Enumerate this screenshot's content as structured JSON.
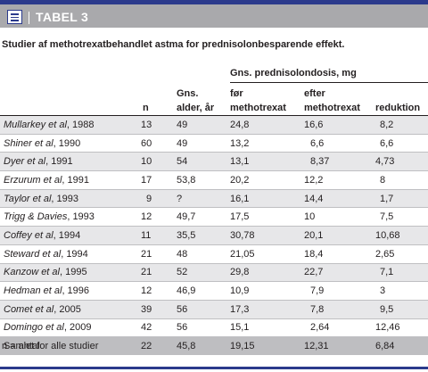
{
  "title": "TABEL 3",
  "caption": "Studier af methotrexatbehandlet astma for prednisolonbesparende effekt.",
  "group_header": "Gns. prednisolondosis, mg",
  "columns": {
    "n": "n",
    "age_l1": "Gns.",
    "age_l2": "alder, år",
    "before_l1": "før",
    "before_l2": "methotrexat",
    "after_l1": "efter",
    "after_l2": "methotrexat",
    "reduction": "reduktion"
  },
  "rows": [
    {
      "author": "Mullarkey et al",
      "year": ", 1988",
      "n": "13",
      "age": "49",
      "before": "24,8",
      "after": "16,6",
      "reduction": "8,2"
    },
    {
      "author": "Shiner et al",
      "year": ", 1990",
      "n": "60",
      "age": "49",
      "before": "13,2",
      "after": "6,6",
      "reduction": "6,6"
    },
    {
      "author": "Dyer et al",
      "year": ", 1991",
      "n": "10",
      "age": "54",
      "before": "13,1",
      "after": "8,37",
      "reduction": "4,73"
    },
    {
      "author": "Erzurum et al",
      "year": ", 1991",
      "n": "17",
      "age": "53,8",
      "before": "20,2",
      "after": "12,2",
      "reduction": "8"
    },
    {
      "author": "Taylor et al",
      "year": ", 1993",
      "n": "9",
      "age": "?",
      "before": "16,1",
      "after": "14,4",
      "reduction": "1,7"
    },
    {
      "author": "Trigg & Davies",
      "year": ", 1993",
      "n": "12",
      "age": "49,7",
      "before": "17,5",
      "after": "10",
      "reduction": "7,5"
    },
    {
      "author": "Coffey et al",
      "year": ", 1994",
      "n": "11",
      "age": "35,5",
      "before": "30,78",
      "after": "20,1",
      "reduction": "10,68"
    },
    {
      "author": "Steward et al",
      "year": ", 1994",
      "n": "21",
      "age": "48",
      "before": "21,05",
      "after": "18,4",
      "reduction": "2,65"
    },
    {
      "author": "Kanzow et al",
      "year": ", 1995",
      "n": "21",
      "age": "52",
      "before": "29,8",
      "after": "22,7",
      "reduction": "7,1"
    },
    {
      "author": "Hedman et al",
      "year": ", 1996",
      "n": "12",
      "age": "46,9",
      "before": "10,9",
      "after": "7,9",
      "reduction": "3"
    },
    {
      "author": "Comet et al",
      "year": ", 2005",
      "n": "39",
      "age": "56",
      "before": "17,3",
      "after": "7,8",
      "reduction": "9,5"
    },
    {
      "author": "Domingo et al",
      "year": ", 2009",
      "n": "42",
      "age": "56",
      "before": "15,1",
      "after": "2,64",
      "reduction": "12,46"
    }
  ],
  "total": {
    "label": "Samlet for alle studier",
    "n": "22",
    "age": "45,8",
    "before": "19,15",
    "after": "12,31",
    "reduction": "6,84"
  },
  "footnote": "n = antal",
  "colors": {
    "accent": "#2b3a8c",
    "title_bar": "#a9a9ac",
    "row_alt": "#e7e7e9",
    "total_row": "#bebec1"
  }
}
